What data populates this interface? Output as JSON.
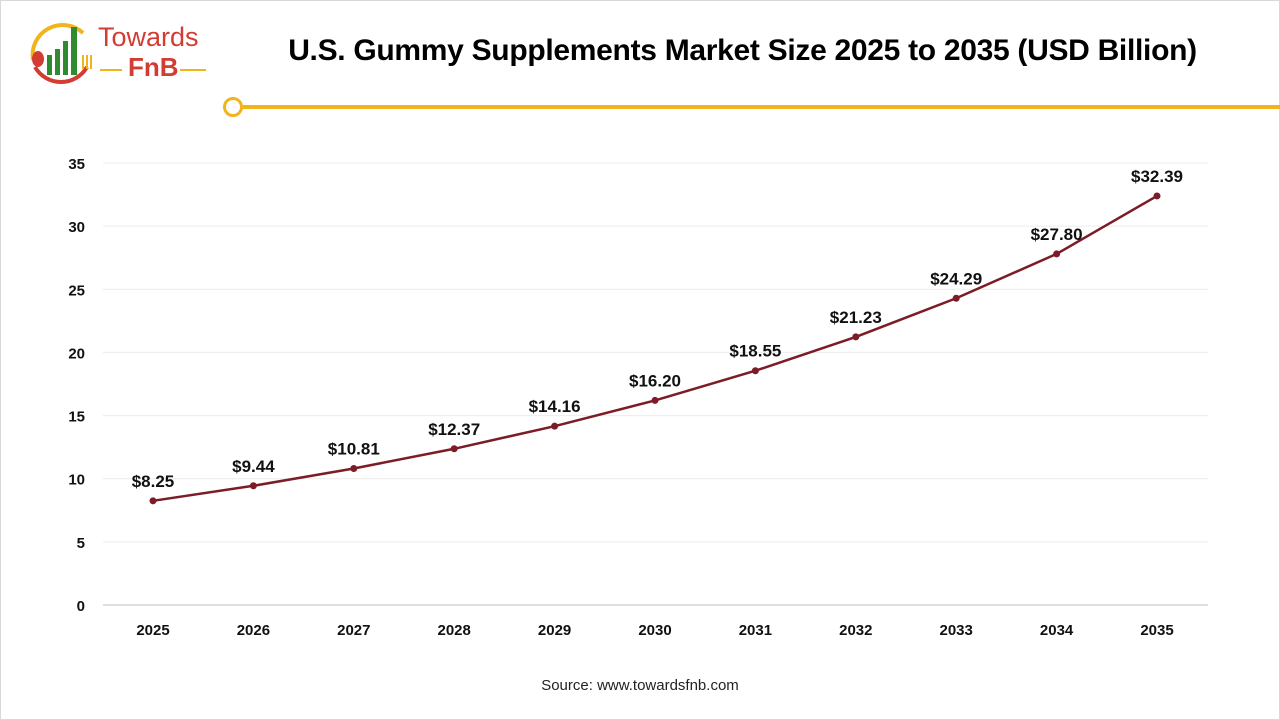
{
  "logo": {
    "line1": "Towards",
    "line2": "FnB"
  },
  "source": "Source: www.towardsfnb.com",
  "colors": {
    "line": "#7b1c26",
    "accent": "#f2b41c",
    "logo_red": "#d23c33",
    "logo_green": "#2e8b2e"
  },
  "chart_data": {
    "type": "line",
    "title": "U.S. Gummy Supplements Market Size 2025 to 2035 (USD Billion)",
    "xlabel": "",
    "ylabel": "",
    "categories": [
      "2025",
      "2026",
      "2027",
      "2028",
      "2029",
      "2030",
      "2031",
      "2032",
      "2033",
      "2034",
      "2035"
    ],
    "values": [
      8.25,
      9.44,
      10.81,
      12.37,
      14.16,
      16.2,
      18.55,
      21.23,
      24.29,
      27.8,
      32.39
    ],
    "data_labels": [
      "$8.25",
      "$9.44",
      "$10.81",
      "$12.37",
      "$14.16",
      "$16.20",
      "$18.55",
      "$21.23",
      "$24.29",
      "$27.80",
      "$32.39"
    ],
    "ylim": [
      0,
      35
    ],
    "yticks": [
      0,
      5,
      10,
      15,
      20,
      25,
      30,
      35
    ],
    "grid": true,
    "legend": "none"
  }
}
